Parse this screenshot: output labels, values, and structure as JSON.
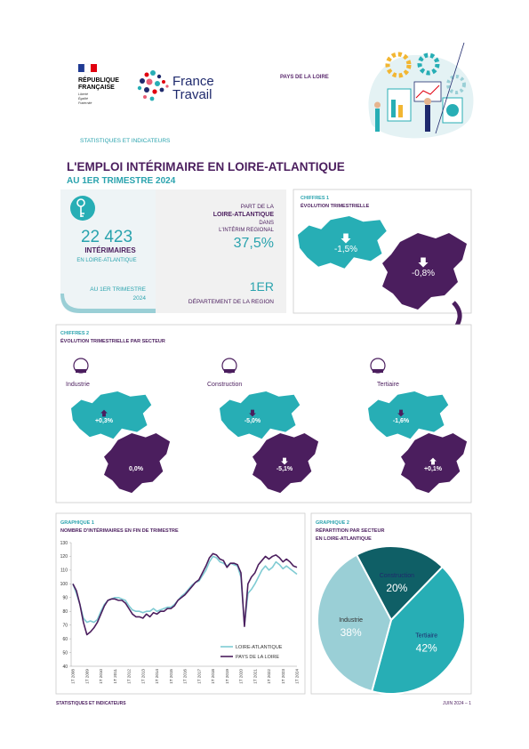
{
  "header": {
    "republic": [
      "RÉPUBLIQUE",
      "FRANÇAISE"
    ],
    "motto": [
      "Liberté",
      "Égalité",
      "Fraternité"
    ],
    "brand": [
      "France",
      "Travail"
    ],
    "region": "PAYS DE LA LOIRE",
    "section": "STATISTIQUES ET INDICATEURS"
  },
  "title": "L'EMPLOI INTÉRIMAIRE EN LOIRE-ATLANTIQUE",
  "subtitle": "AU 1ER TRIMESTRE 2024",
  "key_figures": {
    "count": "22 423",
    "count_label": "INTÉRIMAIRES",
    "count_scope": "EN LOIRE-ATLANTIQUE",
    "period": [
      "AU 1ER TRIMESTRE",
      "2024"
    ],
    "share_text": [
      "PART DE LA",
      "LOIRE-ATLANTIQUE",
      "DANS",
      "L'INTÉRIM REGIONAL"
    ],
    "share": "37,5%",
    "rank": "1ER",
    "rank_label": "DÉPARTEMENT DE LA REGION"
  },
  "figures_1": {
    "label": "CHIFFRES 1",
    "title": "ÉVOLUTION TRIMESTRIELLE",
    "department": "-1,5%",
    "region": "-0,8%"
  },
  "figures_2": {
    "label": "CHIFFRES 2",
    "title": "ÉVOLUTION TRIMESTRIELLE PAR SECTEUR",
    "sectors": [
      {
        "name": "Industrie",
        "department": "+0,3%",
        "region": "0,0%"
      },
      {
        "name": "Construction",
        "department": "-5,0%",
        "region": "-5,1%"
      },
      {
        "name": "Tertiaire",
        "department": "-1,6%",
        "region": "+0,1%"
      }
    ]
  },
  "chart_data": [
    {
      "type": "line",
      "label": "GRAPHIQUE 1",
      "title": "NOMBRE D'INTÉRIMAIRES EN FIN DE TRIMESTRE",
      "categories": [
        "1T 2008",
        null,
        null,
        null,
        "1T 2009",
        null,
        null,
        null,
        "1T 2010",
        null,
        null,
        null,
        "1T 2011",
        null,
        null,
        null,
        "1T 2012",
        null,
        null,
        null,
        "1T 2013",
        null,
        null,
        null,
        "1T 2014",
        null,
        null,
        null,
        "1T 2015",
        null,
        null,
        null,
        "1T 2016",
        null,
        null,
        null,
        "1T 2017",
        null,
        null,
        null,
        "1T 2018",
        null,
        null,
        null,
        "1T 2019",
        null,
        null,
        null,
        "1T 2020",
        null,
        null,
        null,
        "1T 2021",
        null,
        null,
        null,
        "1T 2022",
        null,
        null,
        null,
        "1T 2023",
        null,
        null,
        null,
        "1T 2024"
      ],
      "series": [
        {
          "name": "LOIRE-ATLANTIQUE",
          "color": "#7fcbd3",
          "values": [
            100,
            93,
            85,
            75,
            72,
            73,
            72,
            74,
            80,
            85,
            88,
            89,
            90,
            90,
            89,
            88,
            84,
            81,
            80,
            80,
            79,
            80,
            80,
            82,
            80,
            81,
            82,
            83,
            83,
            85,
            88,
            91,
            93,
            96,
            99,
            101,
            102,
            106,
            110,
            116,
            120,
            119,
            116,
            115,
            113,
            115,
            114,
            113,
            105,
            70,
            93,
            96,
            100,
            105,
            110,
            113,
            110,
            112,
            116,
            114,
            111,
            113,
            111,
            109,
            107
          ]
        },
        {
          "name": "PAYS DE LA LOIRE",
          "color": "#4b1e5e",
          "values": [
            100,
            95,
            85,
            72,
            63,
            65,
            68,
            72,
            78,
            84,
            88,
            89,
            89,
            88,
            88,
            86,
            82,
            78,
            76,
            76,
            75,
            78,
            76,
            79,
            78,
            80,
            80,
            82,
            82,
            84,
            88,
            90,
            92,
            95,
            98,
            101,
            103,
            108,
            113,
            119,
            122,
            121,
            118,
            117,
            112,
            115,
            115,
            114,
            108,
            69,
            100,
            105,
            108,
            114,
            117,
            120,
            118,
            120,
            121,
            119,
            116,
            118,
            116,
            113,
            112
          ]
        }
      ],
      "ylim": [
        40,
        130
      ],
      "yticks": [
        40,
        50,
        60,
        70,
        80,
        90,
        100,
        110,
        120,
        130
      ],
      "grid": false,
      "legend": "lower right"
    },
    {
      "type": "pie",
      "label": "GRAPHIQUE 2",
      "title": [
        "RÉPARTITION PAR SECTEUR",
        "EN LOIRE-ATLANTIQUE"
      ],
      "categories": [
        "Construction",
        "Tertiaire",
        "Industrie"
      ],
      "values": [
        20,
        42,
        38
      ],
      "value_labels": [
        "20%",
        "42%",
        "38%"
      ],
      "colors": [
        "#0f5f66",
        "#27aeb5",
        "#9acfd6"
      ]
    }
  ],
  "footer": {
    "left": "STATISTIQUES ET INDICATEURS",
    "right": "JUIN 2024 – 1"
  }
}
